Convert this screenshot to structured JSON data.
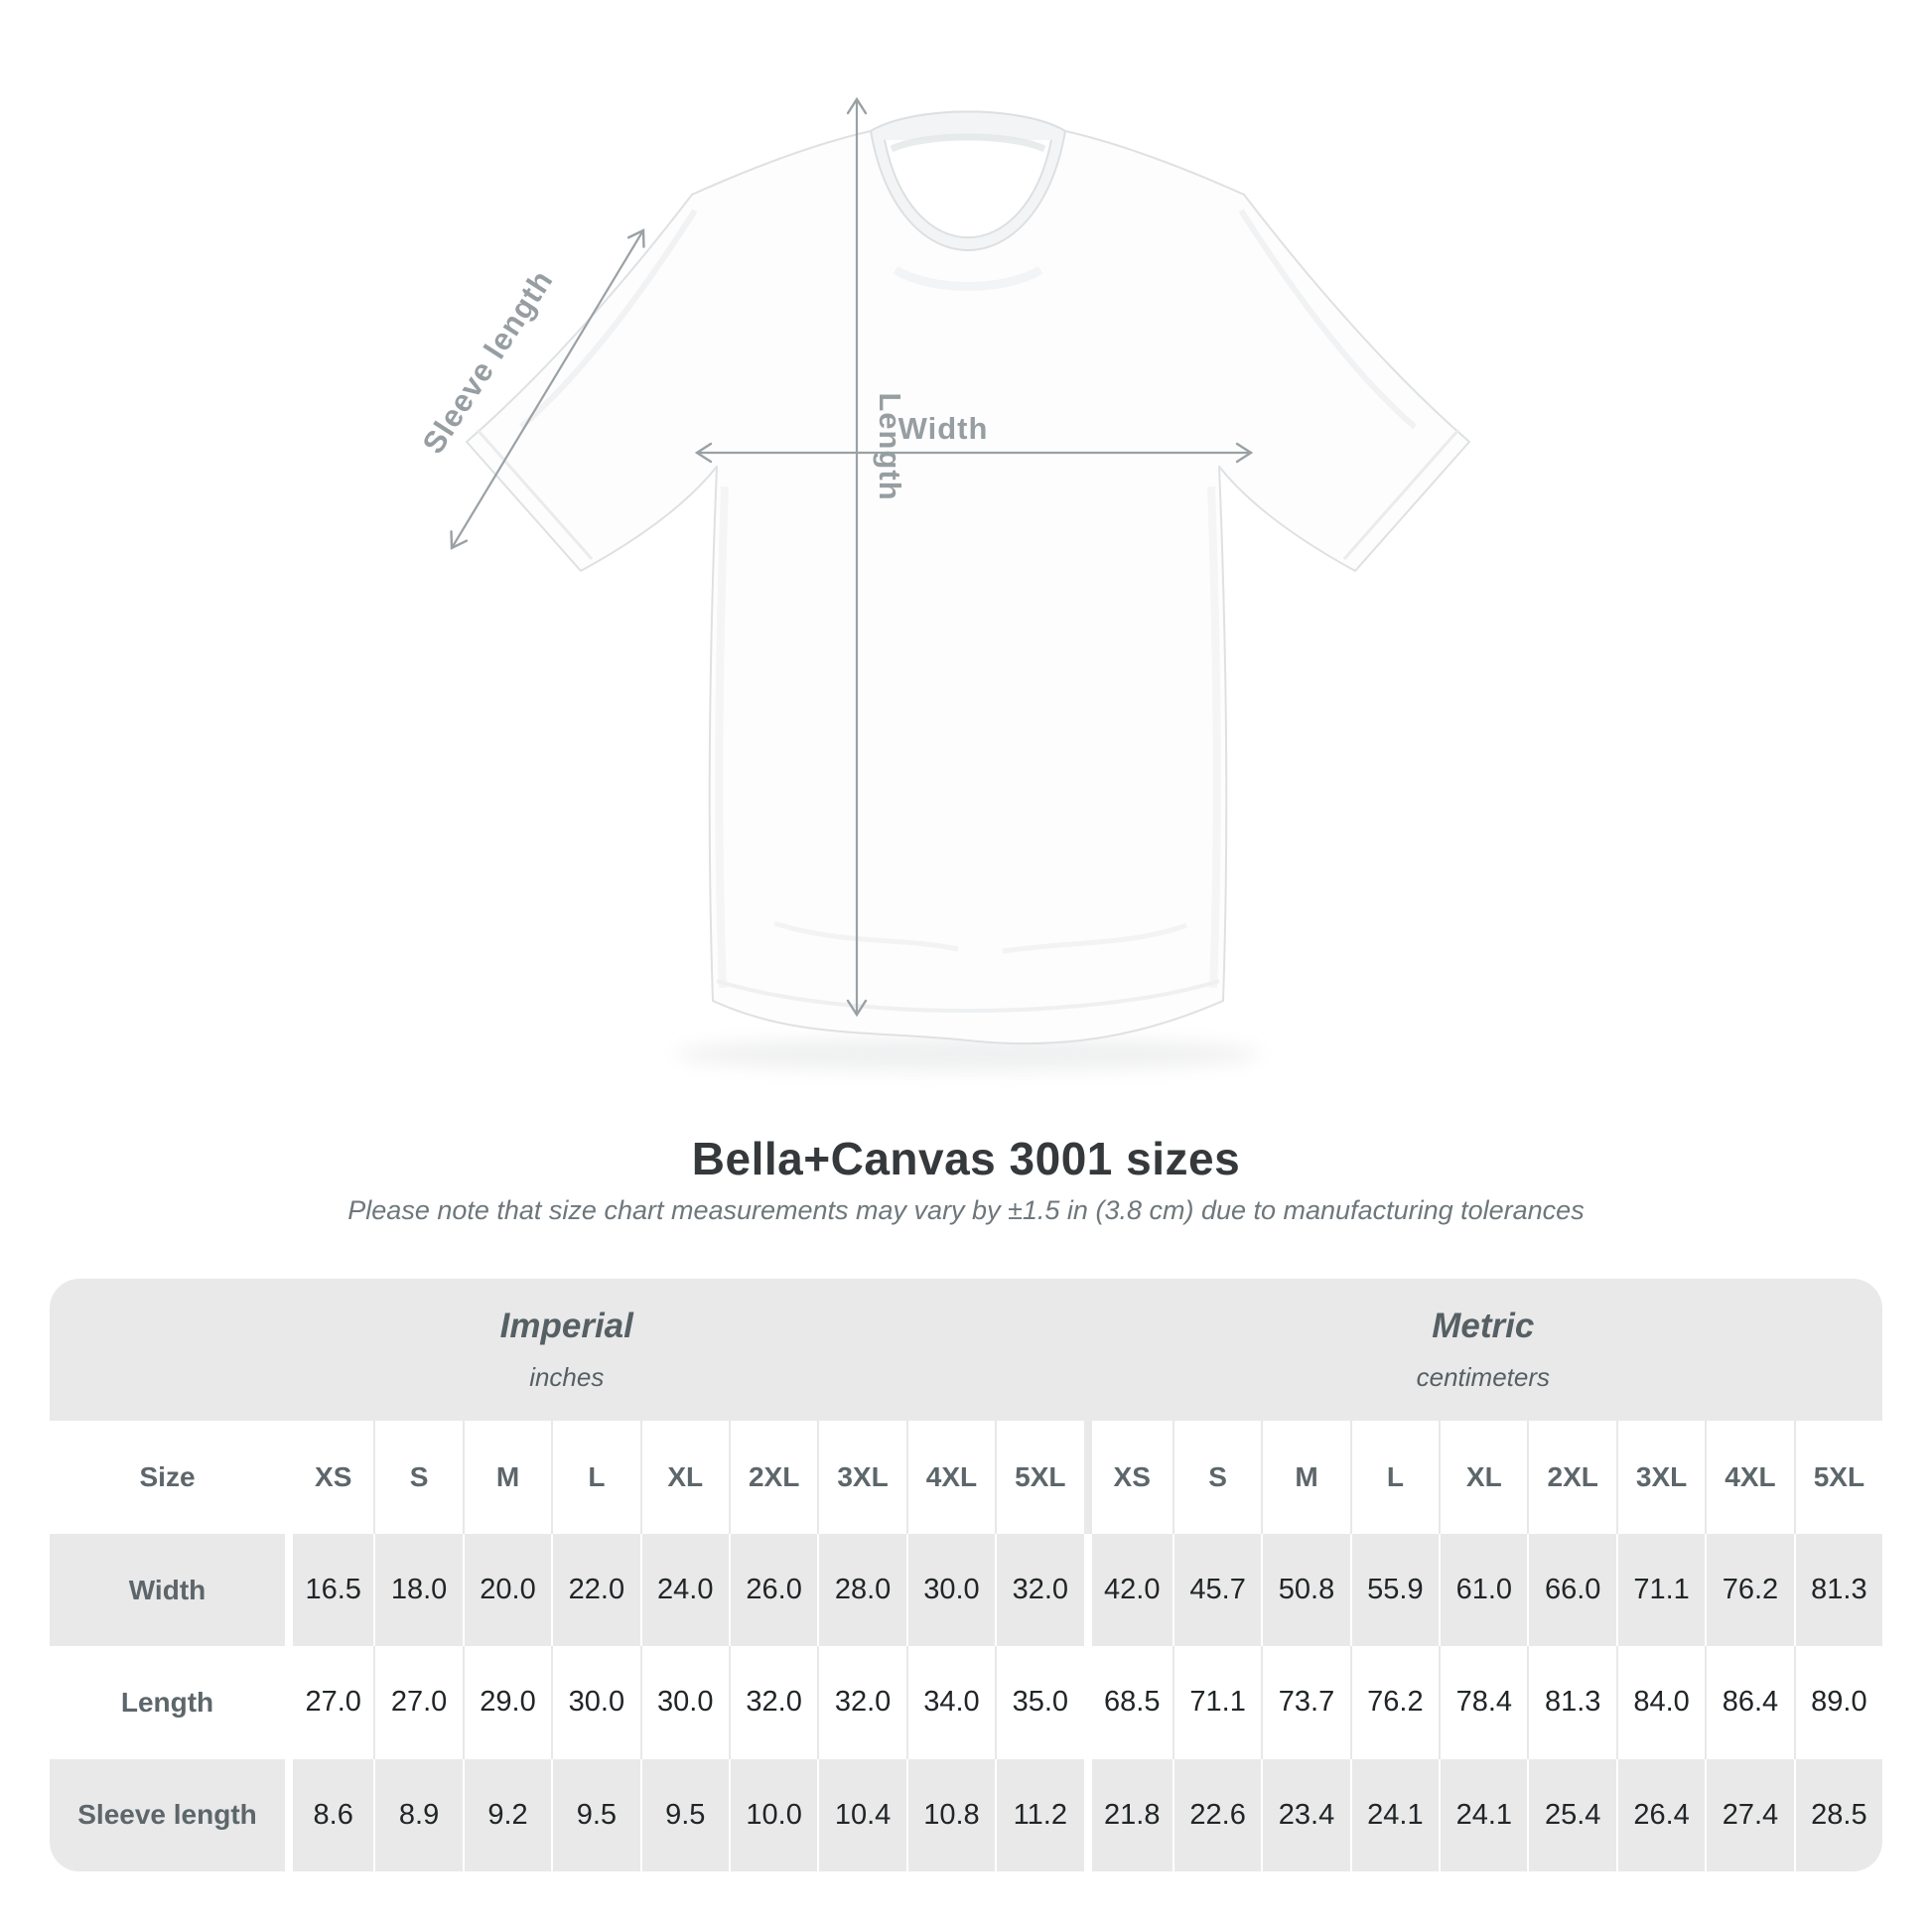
{
  "diagram": {
    "labels": {
      "sleeve_length": "Sleeve length",
      "length": "Length",
      "width": "Width"
    }
  },
  "title": "Bella+Canvas 3001 sizes",
  "subtitle": "Please note that size chart measurements may vary by ±1.5 in (3.8 cm) due to manufacturing tolerances",
  "table": {
    "size_header_label": "Size",
    "sections": [
      {
        "label": "Imperial",
        "sublabel": "inches"
      },
      {
        "label": "Metric",
        "sublabel": "centimeters"
      }
    ],
    "sizes": [
      "XS",
      "S",
      "M",
      "L",
      "XL",
      "2XL",
      "3XL",
      "4XL",
      "5XL"
    ],
    "rows": [
      {
        "label": "Width",
        "imperial": [
          "16.5",
          "18.0",
          "20.0",
          "22.0",
          "24.0",
          "26.0",
          "28.0",
          "30.0",
          "32.0"
        ],
        "metric": [
          "42.0",
          "45.7",
          "50.8",
          "55.9",
          "61.0",
          "66.0",
          "71.1",
          "76.2",
          "81.3"
        ]
      },
      {
        "label": "Length",
        "imperial": [
          "27.0",
          "27.0",
          "29.0",
          "30.0",
          "30.0",
          "32.0",
          "32.0",
          "34.0",
          "35.0"
        ],
        "metric": [
          "68.5",
          "71.1",
          "73.7",
          "76.2",
          "78.4",
          "81.3",
          "84.0",
          "86.4",
          "89.0"
        ]
      },
      {
        "label": "Sleeve length",
        "imperial": [
          "8.6",
          "8.9",
          "9.2",
          "9.5",
          "9.5",
          "10.0",
          "10.4",
          "10.8",
          "11.2"
        ],
        "metric": [
          "21.8",
          "22.6",
          "23.4",
          "24.1",
          "24.1",
          "25.4",
          "26.4",
          "27.4",
          "28.5"
        ]
      }
    ]
  },
  "chart_data": {
    "type": "table",
    "title": "Bella+Canvas 3001 sizes",
    "note": "Please note that size chart measurements may vary by ±1.5 in (3.8 cm) due to manufacturing tolerances",
    "units": {
      "Imperial": "inches",
      "Metric": "centimeters"
    },
    "sizes": [
      "XS",
      "S",
      "M",
      "L",
      "XL",
      "2XL",
      "3XL",
      "4XL",
      "5XL"
    ],
    "measurements": [
      {
        "name": "Width",
        "imperial_in": [
          16.5,
          18.0,
          20.0,
          22.0,
          24.0,
          26.0,
          28.0,
          30.0,
          32.0
        ],
        "metric_cm": [
          42.0,
          45.7,
          50.8,
          55.9,
          61.0,
          66.0,
          71.1,
          76.2,
          81.3
        ]
      },
      {
        "name": "Length",
        "imperial_in": [
          27.0,
          27.0,
          29.0,
          30.0,
          30.0,
          32.0,
          32.0,
          34.0,
          35.0
        ],
        "metric_cm": [
          68.5,
          71.1,
          73.7,
          76.2,
          78.4,
          81.3,
          84.0,
          86.4,
          89.0
        ]
      },
      {
        "name": "Sleeve length",
        "imperial_in": [
          8.6,
          8.9,
          9.2,
          9.5,
          9.5,
          10.0,
          10.4,
          10.8,
          11.2
        ],
        "metric_cm": [
          21.8,
          22.6,
          23.4,
          24.1,
          24.1,
          25.4,
          26.4,
          27.4,
          28.5
        ]
      }
    ]
  }
}
